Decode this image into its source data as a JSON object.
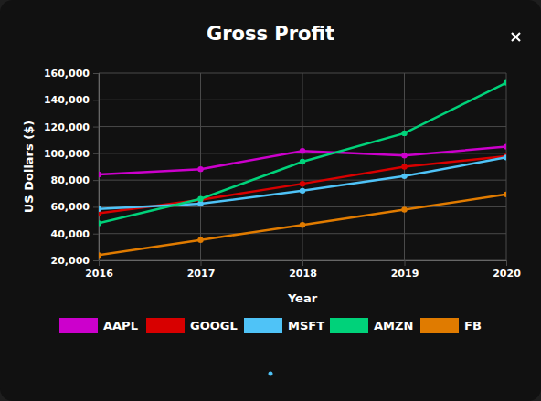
{
  "chart_data": {
    "type": "line",
    "title": "Gross Profit",
    "x_label": "Year",
    "y_label": "US Dollars ($)",
    "x": [
      2016,
      2017,
      2018,
      2019,
      2020
    ],
    "xlim": [
      2016,
      2020
    ],
    "xticks": [
      2016,
      2017,
      2018,
      2019,
      2020
    ],
    "ylim": [
      20000,
      160000
    ],
    "yticks": [
      {
        "value": 20000,
        "label": "20,000"
      },
      {
        "value": 40000,
        "label": "40,000"
      },
      {
        "value": 60000,
        "label": "60,000"
      },
      {
        "value": 80000,
        "label": "80,000"
      },
      {
        "value": 100000,
        "label": "100,000"
      },
      {
        "value": 120000,
        "label": "120,000"
      },
      {
        "value": 140000,
        "label": "140,000"
      },
      {
        "value": 160000,
        "label": "160,000"
      }
    ],
    "grid": true,
    "legend": "bottom",
    "marker": "circle",
    "series": [
      {
        "name": "AAPL",
        "color": "#cc00cc",
        "values": [
          84263,
          88186,
          101839,
          98392,
          104956
        ]
      },
      {
        "name": "GOOGL",
        "color": "#d80000",
        "values": [
          55134,
          65272,
          77270,
          89961,
          97795
        ]
      },
      {
        "name": "MSFT",
        "color": "#4fc3f7",
        "values": [
          58374,
          62310,
          72007,
          82933,
          96937
        ]
      },
      {
        "name": "AMZN",
        "color": "#00d27a",
        "values": [
          47722,
          65932,
          93731,
          114986,
          152757
        ]
      },
      {
        "name": "FB",
        "color": "#e07b00",
        "values": [
          23849,
          35199,
          46483,
          57927,
          69273
        ]
      }
    ]
  }
}
